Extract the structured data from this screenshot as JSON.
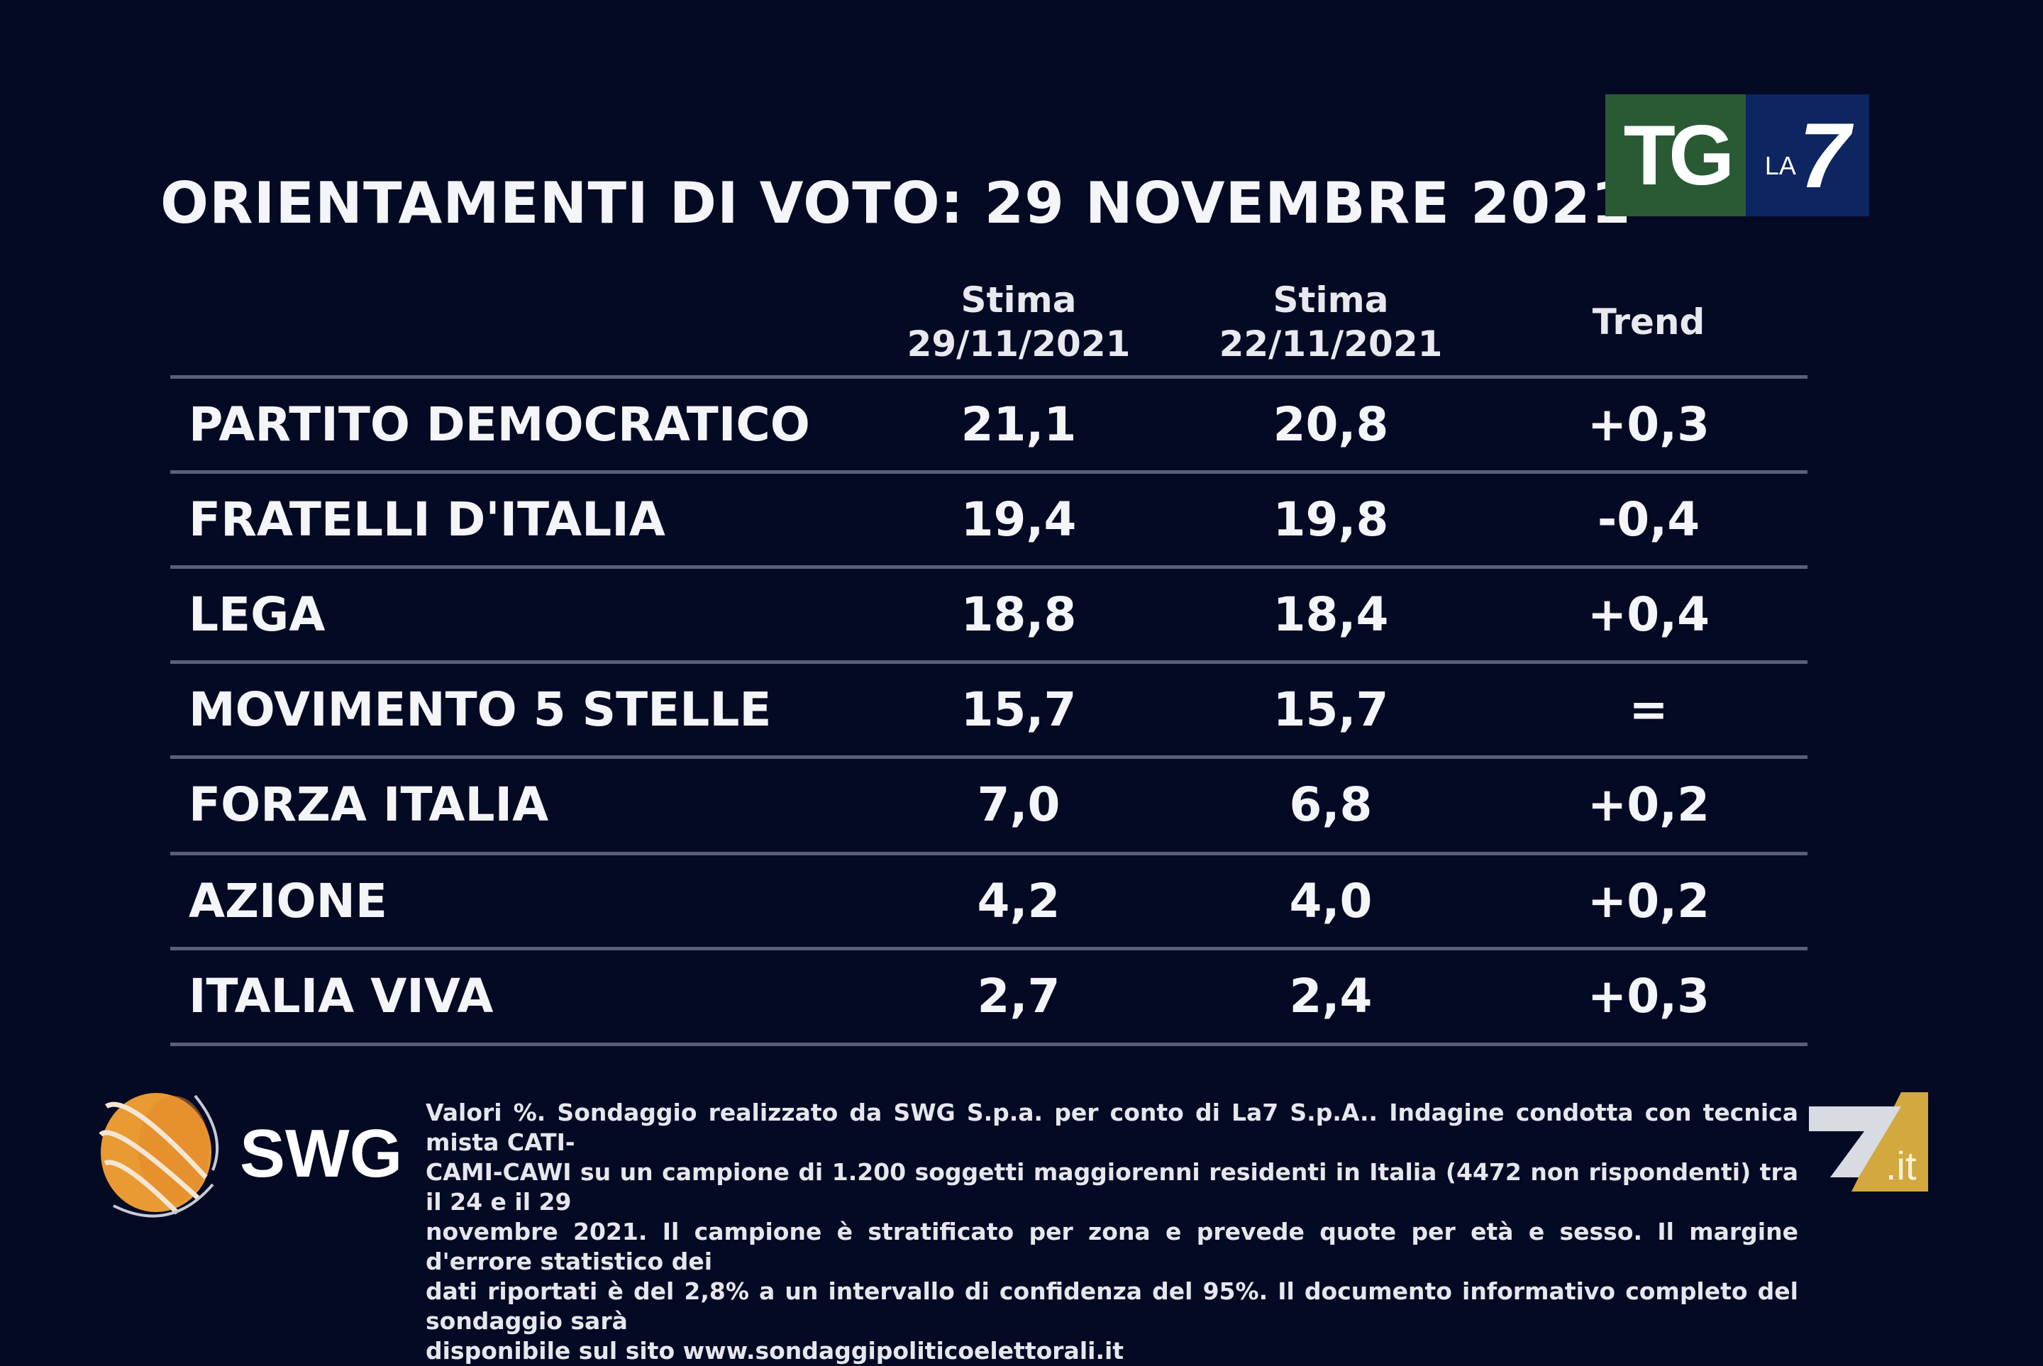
{
  "title": "ORIENTAMENTI DI VOTO: 29 NOVEMBRE 2021",
  "logo_tg": {
    "tg": "TG",
    "la": "LA",
    "seven": "7"
  },
  "columns": [
    {
      "line1": "Stima",
      "line2": "29/11/2021"
    },
    {
      "line1": "Stima",
      "line2": "22/11/2021"
    },
    {
      "line1": "Trend",
      "line2": ""
    }
  ],
  "rows": [
    {
      "party": "PARTITO DEMOCRATICO",
      "current": "21,1",
      "previous": "20,8",
      "trend": "+0,3"
    },
    {
      "party": "FRATELLI D'ITALIA",
      "current": "19,4",
      "previous": "19,8",
      "trend": "-0,4"
    },
    {
      "party": "LEGA",
      "current": "18,8",
      "previous": "18,4",
      "trend": "+0,4"
    },
    {
      "party": "MOVIMENTO 5 STELLE",
      "current": "15,7",
      "previous": "15,7",
      "trend": "="
    },
    {
      "party": "FORZA ITALIA",
      "current": "7,0",
      "previous": "6,8",
      "trend": "+0,2"
    },
    {
      "party": "AZIONE",
      "current": "4,2",
      "previous": "4,0",
      "trend": "+0,2"
    },
    {
      "party": "ITALIA VIVA",
      "current": "2,7",
      "previous": "2,4",
      "trend": "+0,3"
    }
  ],
  "footnote": [
    "Valori %. Sondaggio realizzato da SWG S.p.a. per conto di La7 S.p.A.. Indagine condotta con tecnica mista CATI-",
    "CAMI-CAWI su un campione di 1.200 soggetti maggiorenni residenti in Italia (4472 non rispondenti) tra il 24 e il 29",
    "novembre 2021. Il campione è stratificato per zona e prevede quote per età e sesso. Il margine d'errore statistico dei",
    "dati riportati è del 2,8% a un intervallo di confidenza del 95%. Il documento informativo completo del sondaggio sarà",
    "disponibile sul sito www.sondaggipoliticoelettorali.it"
  ],
  "swg_logo": "SWG",
  "la7it_logo": ".it",
  "colors": {
    "background": "#050a24",
    "tg_green": "#2a5a34",
    "la7_blue": "#0d2560",
    "separator": "#5a5f78",
    "swg_orange": "#e99a33",
    "la7it_gold": "#d3a83e"
  }
}
